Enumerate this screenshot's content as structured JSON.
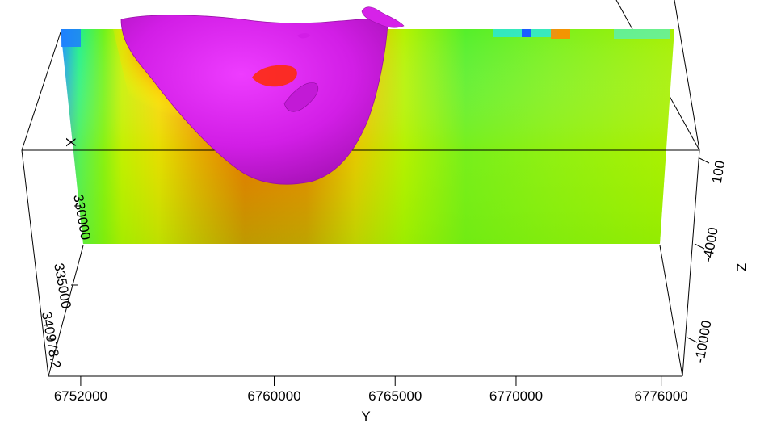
{
  "chart_data": {
    "type": "3d-volume",
    "y_axis": {
      "label": "Y",
      "ticks": [
        "6752000",
        "6760000",
        "6765000",
        "6770000",
        "6776000"
      ]
    },
    "x_axis": {
      "label": "X",
      "ticks": [
        "330000",
        "335000",
        "340978.2"
      ]
    },
    "z_axis": {
      "label": "Z",
      "ticks": [
        "100",
        "-4000",
        "-10000"
      ]
    },
    "slice_colormap": [
      "#1e6ff0",
      "#00e0ff",
      "#2bef3f",
      "#7df21a",
      "#ffff00",
      "#ffb000",
      "#ff4a00",
      "#ff0000"
    ],
    "isosurface_color": "#d81ee8"
  }
}
